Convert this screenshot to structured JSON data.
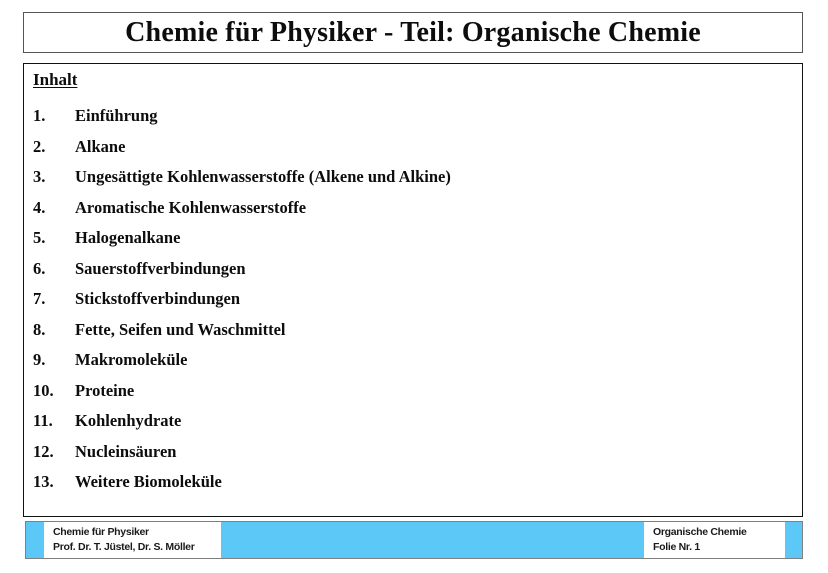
{
  "slide": {
    "title": "Chemie für Physiker - Teil: Organische Chemie"
  },
  "content": {
    "heading": "Inhalt",
    "items": [
      {
        "number": "1.",
        "label": "Einführung"
      },
      {
        "number": "2.",
        "label": "Alkane"
      },
      {
        "number": "3.",
        "label": "Ungesättigte Kohlenwasserstoffe (Alkene und Alkine)"
      },
      {
        "number": "4.",
        "label": "Aromatische Kohlenwasserstoffe"
      },
      {
        "number": "5.",
        "label": "Halogenalkane"
      },
      {
        "number": "6.",
        "label": "Sauerstoffverbindungen"
      },
      {
        "number": "7.",
        "label": "Stickstoffverbindungen"
      },
      {
        "number": "8.",
        "label": "Fette, Seifen und Waschmittel"
      },
      {
        "number": "9.",
        "label": "Makromoleküle"
      },
      {
        "number": "10.",
        "label": "Proteine"
      },
      {
        "number": "11.",
        "label": "Kohlenhydrate"
      },
      {
        "number": "12.",
        "label": "Nucleinsäuren"
      },
      {
        "number": "13.",
        "label": "Weitere Biomoleküle"
      }
    ]
  },
  "footer": {
    "left": {
      "line1": "Chemie für Physiker",
      "line2": "Prof. Dr. T. Jüstel, Dr. S. Möller"
    },
    "right": {
      "line1": "Organische Chemie",
      "line2": "Folie Nr. 1"
    }
  },
  "colors": {
    "accent_cyan": "#5BC8F7",
    "footer_border": "#808080",
    "text": "#0d0d0d"
  }
}
